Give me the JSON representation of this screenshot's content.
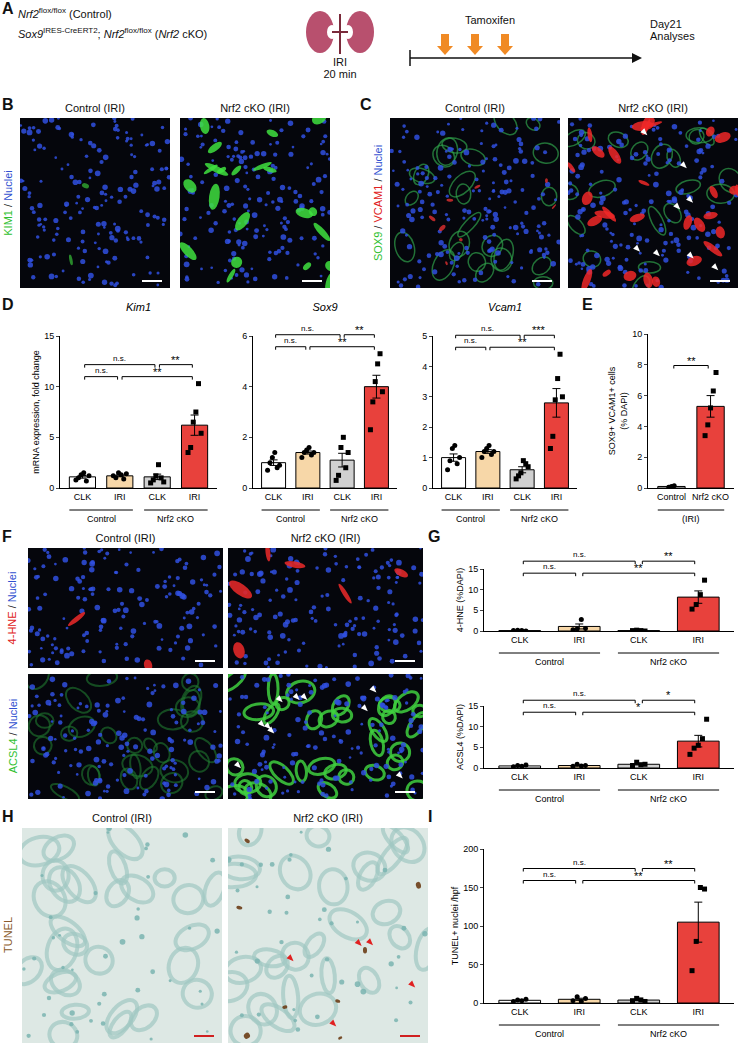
{
  "panels": {
    "A": {
      "label": "A",
      "genotypes": [
        [
          {
            "text": "Nrf2",
            "style": "italic"
          },
          {
            "text": "flox/flox",
            "style": "sup"
          },
          {
            "text": " (Control)",
            "style": "normal"
          }
        ],
        [
          {
            "text": "Sox9",
            "style": "italic"
          },
          {
            "text": "IRES-CreERT2",
            "style": "sup"
          },
          {
            "text": "; ",
            "style": "normal"
          },
          {
            "text": "Nrf2",
            "style": "italic"
          },
          {
            "text": "flox/flox",
            "style": "sup"
          },
          {
            "text": " (",
            "style": "normal"
          },
          {
            "text": "Nrf2",
            "style": "italic"
          },
          {
            "text": " cKO)",
            "style": "normal"
          }
        ]
      ],
      "procedure": [
        "IRI",
        "20 min"
      ],
      "treatment": "Tamoxifen",
      "endpoint": [
        "Day21",
        "Analyses"
      ]
    },
    "B": {
      "label": "B",
      "conditions": [
        "Control (IRI)",
        "Nrf2 cKO (IRI)"
      ],
      "stain": [
        {
          "text": "KIM1",
          "color": "#2fbf2f"
        },
        {
          "text": " / ",
          "color": "#111111"
        },
        {
          "text": "Nuclei",
          "color": "#2f4fd0"
        }
      ]
    },
    "C": {
      "label": "C",
      "conditions": [
        "Control (IRI)",
        "Nrf2 cKO (IRI)"
      ],
      "stain": [
        {
          "text": "SOX9",
          "color": "#2fbf2f"
        },
        {
          "text": " / ",
          "color": "#111111"
        },
        {
          "text": "VCAM1",
          "color": "#e02020"
        },
        {
          "text": " / ",
          "color": "#111111"
        },
        {
          "text": "Nuclei",
          "color": "#2f4fd0"
        }
      ]
    },
    "F": {
      "label": "F",
      "conditions": [
        "Control (IRI)",
        "Nrf2 cKO (IRI)"
      ],
      "rows": [
        {
          "stain": [
            {
              "text": "4-HNE",
              "color": "#e02020"
            },
            {
              "text": " / ",
              "color": "#111111"
            },
            {
              "text": "Nuclei",
              "color": "#2f4fd0"
            }
          ]
        },
        {
          "stain": [
            {
              "text": "ACSL4",
              "color": "#2fbf2f"
            },
            {
              "text": " / ",
              "color": "#111111"
            },
            {
              "text": "Nuclei",
              "color": "#2f4fd0"
            }
          ]
        }
      ]
    },
    "H": {
      "label": "H",
      "conditions": [
        "Control (IRI)",
        "Nrf2 cKO (IRI)"
      ],
      "stain": [
        {
          "text": "TUNEL",
          "color": "#8a5a2b"
        }
      ]
    }
  },
  "chart_data": [
    {
      "panel": "D",
      "type": "bar",
      "title": "Kim1",
      "ylabel": "mRNA expression, fold change",
      "categories": [
        "CLK",
        "IRI",
        "CLK",
        "IRI"
      ],
      "groups": [
        {
          "name": "Control",
          "span": [
            0,
            1
          ]
        },
        {
          "name": "Nrf2 cKO",
          "span": [
            2,
            3
          ]
        }
      ],
      "values": [
        1.1,
        1.2,
        1.1,
        6.2
      ],
      "errors": [
        0.13,
        0.09,
        0.27,
        1.0
      ],
      "points": [
        [
          0.8,
          1.0,
          1.3,
          1.5,
          0.7,
          1.2
        ],
        [
          1.2,
          1.0,
          1.5,
          1.3,
          0.9,
          1.4
        ],
        [
          0.5,
          0.8,
          1.2,
          2.3,
          1.0,
          0.6
        ],
        [
          3.5,
          4.0,
          6.5,
          7.5,
          10.3,
          5.4
        ]
      ],
      "colors": [
        "#ffffff",
        "#f7d7a8",
        "#d0d0d0",
        "#e8413c"
      ],
      "markers": [
        "circle",
        "circle",
        "square",
        "square"
      ],
      "ylim": [
        0,
        15
      ],
      "yticks": [
        0,
        5,
        10,
        15
      ],
      "comparisons": [
        {
          "between": [
            0,
            1
          ],
          "label": "n.s."
        },
        {
          "between": [
            1,
            3
          ],
          "label": "**"
        },
        {
          "between": [
            0,
            2
          ],
          "label": "n.s."
        },
        {
          "between": [
            2,
            3
          ],
          "label": "**"
        }
      ]
    },
    {
      "type": "bar",
      "title": "Sox9",
      "categories": [
        "CLK",
        "IRI",
        "CLK",
        "IRI"
      ],
      "groups": [
        {
          "name": "Control",
          "span": [
            0,
            1
          ]
        },
        {
          "name": "Nrf2 cKO",
          "span": [
            2,
            3
          ]
        }
      ],
      "values": [
        1.0,
        1.4,
        1.1,
        4.0
      ],
      "errors": [
        0.11,
        0.06,
        0.27,
        0.45
      ],
      "points": [
        [
          0.7,
          1.0,
          1.2,
          1.4,
          0.8,
          0.9
        ],
        [
          1.2,
          1.4,
          1.5,
          1.6,
          1.3,
          1.4
        ],
        [
          0.3,
          0.5,
          1.6,
          2.0,
          0.8,
          1.4
        ],
        [
          2.3,
          3.4,
          4.2,
          4.9,
          5.3,
          3.8
        ]
      ],
      "colors": [
        "#ffffff",
        "#f7d7a8",
        "#d0d0d0",
        "#e8413c"
      ],
      "markers": [
        "circle",
        "circle",
        "square",
        "square"
      ],
      "ylim": [
        0,
        6
      ],
      "yticks": [
        0,
        2,
        4,
        6
      ],
      "comparisons": [
        {
          "between": [
            0,
            1
          ],
          "label": "n.s."
        },
        {
          "between": [
            1,
            3
          ],
          "label": "**"
        },
        {
          "between": [
            0,
            2
          ],
          "label": "n.s."
        },
        {
          "between": [
            2,
            3
          ],
          "label": "**"
        }
      ]
    },
    {
      "type": "bar",
      "title": "Vcam1",
      "categories": [
        "CLK",
        "IRI",
        "CLK",
        "IRI"
      ],
      "groups": [
        {
          "name": "Control",
          "span": [
            0,
            1
          ]
        },
        {
          "name": "Nrf2 cKO",
          "span": [
            2,
            3
          ]
        }
      ],
      "values": [
        1.0,
        1.2,
        0.6,
        2.8
      ],
      "errors": [
        0.12,
        0.06,
        0.1,
        0.47
      ],
      "points": [
        [
          0.6,
          0.9,
          1.3,
          1.4,
          0.8,
          1.0
        ],
        [
          1.0,
          1.2,
          1.3,
          1.4,
          1.1,
          1.2
        ],
        [
          0.3,
          0.4,
          0.5,
          0.9,
          0.8,
          0.7
        ],
        [
          1.3,
          1.7,
          2.9,
          3.6,
          4.4,
          3.0
        ]
      ],
      "colors": [
        "#ffffff",
        "#f7d7a8",
        "#d0d0d0",
        "#e8413c"
      ],
      "markers": [
        "circle",
        "circle",
        "square",
        "square"
      ],
      "ylim": [
        0,
        5
      ],
      "yticks": [
        0,
        1,
        2,
        3,
        4,
        5
      ],
      "comparisons": [
        {
          "between": [
            0,
            1
          ],
          "label": "n.s."
        },
        {
          "between": [
            1,
            3
          ],
          "label": "**"
        },
        {
          "between": [
            0,
            2
          ],
          "label": "n.s."
        },
        {
          "between": [
            2,
            3
          ],
          "label": "***"
        }
      ]
    },
    {
      "panel": "E",
      "type": "bar",
      "ylabel": [
        "SOX9+ VCAM1+ cells",
        "(% DAPI)"
      ],
      "categories": [
        "Control",
        "Nrf2 cKO"
      ],
      "groups": [
        {
          "name": "(IRI)",
          "span": [
            0,
            1
          ]
        }
      ],
      "values": [
        0.1,
        5.3
      ],
      "errors": [
        0.03,
        0.7
      ],
      "points": [
        [
          0.05,
          0.1,
          0.15
        ],
        [
          3.4,
          4.1,
          5.2,
          6.3,
          7.5
        ]
      ],
      "colors": [
        "#ffffff",
        "#e8413c"
      ],
      "markers": [
        "circle",
        "square"
      ],
      "ylim": [
        0,
        10
      ],
      "yticks": [
        0,
        2,
        4,
        6,
        8,
        10
      ],
      "comparisons": [
        {
          "between": [
            0,
            1
          ],
          "label": "**"
        }
      ]
    },
    {
      "panel": "G",
      "type": "bar",
      "ylabel": "4-HNE (%DAPI)",
      "categories": [
        "CLK",
        "IRI",
        "CLK",
        "IRI"
      ],
      "groups": [
        {
          "name": "Control",
          "span": [
            0,
            1
          ]
        },
        {
          "name": "Nrf2 cKO",
          "span": [
            2,
            3
          ]
        }
      ],
      "values": [
        0.1,
        1.1,
        0.1,
        8.2
      ],
      "errors": [
        0.04,
        0.6,
        0.04,
        1.5
      ],
      "points": [
        [
          0.1,
          0.2,
          0.1,
          0.0
        ],
        [
          0.3,
          0.5,
          2.8,
          0.6
        ],
        [
          0.1,
          0.2,
          0.1,
          0.0
        ],
        [
          5.3,
          6.4,
          8.8,
          12.3
        ]
      ],
      "colors": [
        "#ffffff",
        "#f7d7a8",
        "#d0d0d0",
        "#e8413c"
      ],
      "markers": [
        "circle",
        "circle",
        "square",
        "square"
      ],
      "ylim": [
        0,
        15
      ],
      "yticks": [
        0,
        5,
        10,
        15
      ],
      "comparisons": [
        {
          "between": [
            0,
            1
          ],
          "label": "n.s."
        },
        {
          "between": [
            1,
            3
          ],
          "label": "**"
        },
        {
          "between": [
            0,
            2
          ],
          "label": "n.s."
        },
        {
          "between": [
            2,
            3
          ],
          "label": "**"
        }
      ]
    },
    {
      "type": "bar",
      "ylabel": "ACSL4 (%DAPI)",
      "categories": [
        "CLK",
        "IRI",
        "CLK",
        "IRI"
      ],
      "groups": [
        {
          "name": "Control",
          "span": [
            0,
            1
          ]
        },
        {
          "name": "Nrf2 cKO",
          "span": [
            2,
            3
          ]
        }
      ],
      "values": [
        0.5,
        0.6,
        0.9,
        6.5
      ],
      "errors": [
        0.09,
        0.11,
        0.17,
        1.4
      ],
      "points": [
        [
          0.3,
          0.6,
          0.4,
          0.7
        ],
        [
          0.4,
          0.9,
          0.5,
          0.6
        ],
        [
          0.6,
          1.4,
          0.8,
          0.9
        ],
        [
          3.3,
          4.8,
          5.5,
          7.1,
          11.8
        ]
      ],
      "colors": [
        "#ffffff",
        "#f7d7a8",
        "#d0d0d0",
        "#e8413c"
      ],
      "markers": [
        "circle",
        "circle",
        "square",
        "square"
      ],
      "ylim": [
        0,
        15
      ],
      "yticks": [
        0,
        5,
        10,
        15
      ],
      "comparisons": [
        {
          "between": [
            0,
            1
          ],
          "label": "n.s."
        },
        {
          "between": [
            1,
            3
          ],
          "label": "*"
        },
        {
          "between": [
            0,
            2
          ],
          "label": "n.s."
        },
        {
          "between": [
            2,
            3
          ],
          "label": "*"
        }
      ]
    },
    {
      "panel": "I",
      "type": "bar",
      "ylabel": "TUNEL+ nuclei /hpf",
      "categories": [
        "CLK",
        "IRI",
        "CLK",
        "IRI"
      ],
      "groups": [
        {
          "name": "Control",
          "span": [
            0,
            1
          ]
        },
        {
          "name": "Nrf2 cKO",
          "span": [
            2,
            3
          ]
        }
      ],
      "values": [
        3.5,
        4.8,
        3.8,
        105
      ],
      "errors": [
        0.6,
        1.4,
        0.9,
        26
      ],
      "points": [
        [
          2,
          4,
          3,
          5
        ],
        [
          3,
          8,
          2,
          6
        ],
        [
          3,
          6,
          4,
          2
        ],
        [
          42,
          80,
          150,
          148
        ]
      ],
      "colors": [
        "#ffffff",
        "#f7d7a8",
        "#d0d0d0",
        "#e8413c"
      ],
      "markers": [
        "circle",
        "circle",
        "square",
        "square"
      ],
      "ylim": [
        0,
        200
      ],
      "yticks": [
        0,
        50,
        100,
        150,
        200
      ],
      "comparisons": [
        {
          "between": [
            0,
            1
          ],
          "label": "n.s."
        },
        {
          "between": [
            1,
            3
          ],
          "label": "**"
        },
        {
          "between": [
            0,
            2
          ],
          "label": "n.s."
        },
        {
          "between": [
            2,
            3
          ],
          "label": "**"
        }
      ]
    }
  ]
}
